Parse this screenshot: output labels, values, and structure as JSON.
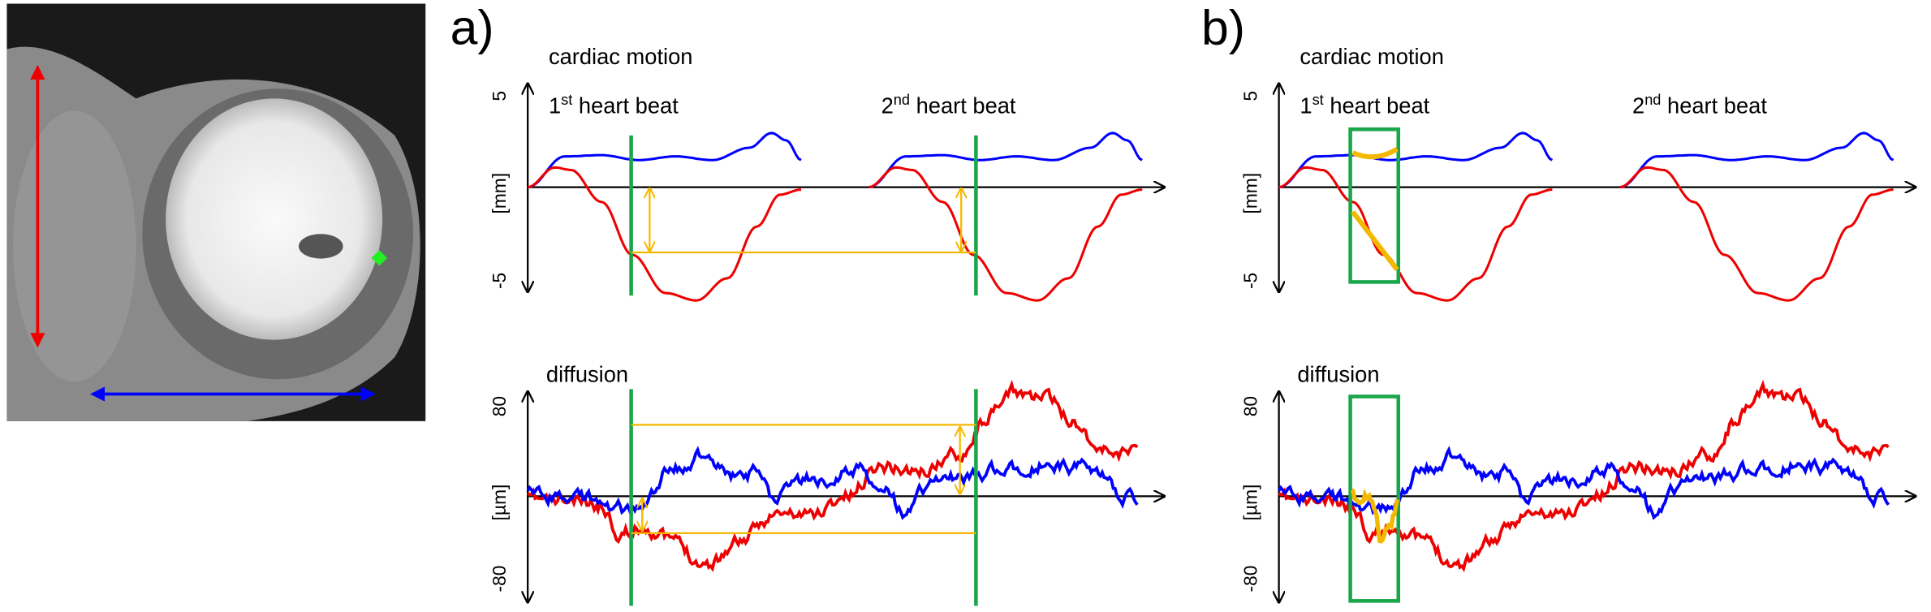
{
  "panels": [
    {
      "label": "a)",
      "motion": {
        "title": "cardiac motion",
        "beats": [
          {
            "ordinal": "1",
            "suffix": "st",
            "text": "heart beat"
          },
          {
            "ordinal": "2",
            "suffix": "nd",
            "text": "heart beat"
          }
        ],
        "yticks": [
          "5",
          "-5"
        ],
        "unit": "[mm]"
      },
      "diffusion": {
        "title": "diffusion",
        "yticks": [
          "80",
          "-80"
        ],
        "unit": "[µm]"
      }
    },
    {
      "label": "b)",
      "motion": {
        "title": "cardiac motion",
        "beats": [
          {
            "ordinal": "1",
            "suffix": "st",
            "text": "heart beat"
          },
          {
            "ordinal": "2",
            "suffix": "nd",
            "text": "heart beat"
          }
        ],
        "yticks": [
          "5",
          "-5"
        ],
        "unit": "[mm]"
      },
      "diffusion": {
        "title": "diffusion",
        "yticks": [
          "80",
          "-80"
        ],
        "unit": "[µm]"
      }
    }
  ]
}
